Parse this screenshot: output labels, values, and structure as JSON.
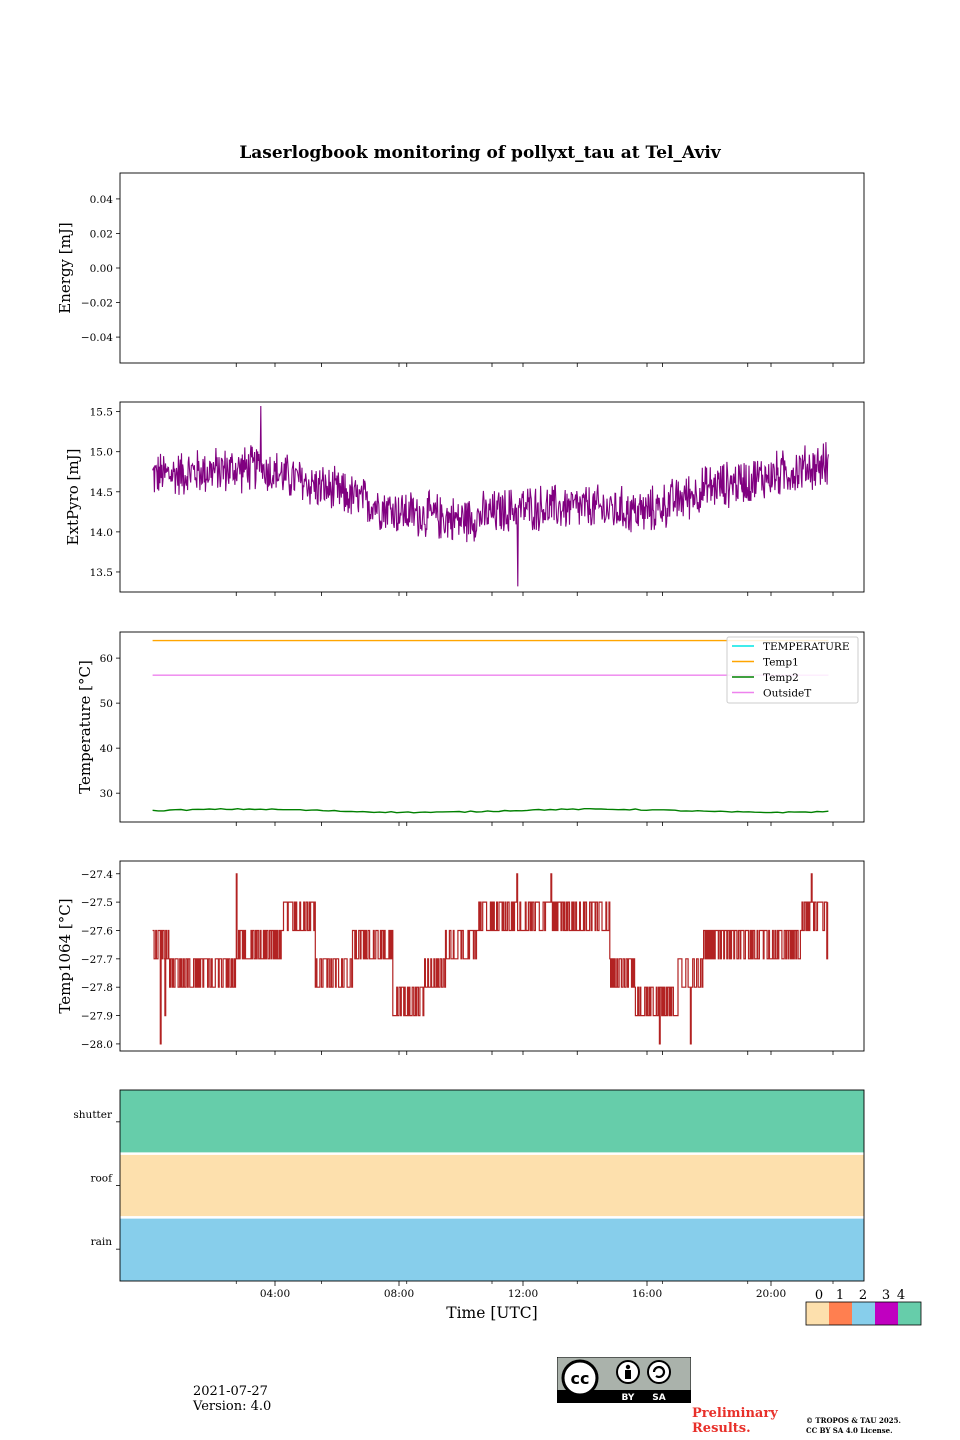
{
  "figure": {
    "title": "Laserlogbook monitoring of pollyxt_tau at Tel_Aviv",
    "date": "2021-07-27",
    "version": "Version: 4.0",
    "preliminary": [
      "Preliminary",
      "Results."
    ],
    "copyright": [
      "© TROPOS & TAU 2025.",
      "CC BY SA 4.0 License."
    ],
    "license_badge": {
      "cc": "cc",
      "by": "BY",
      "sa": "SA"
    }
  },
  "chart_data": [
    {
      "type": "line",
      "id": "energy",
      "ylabel": "Energy [mJ]",
      "ylim": [
        -0.055,
        0.055
      ],
      "yticks": [
        0.04,
        0.02,
        0.0,
        -0.02,
        -0.04
      ],
      "ytick_labels": [
        "0.04",
        "0.02",
        "0.00",
        "−0.02",
        "−0.04"
      ],
      "series": []
    },
    {
      "type": "line",
      "id": "extpyro",
      "ylabel": "ExtPyro [mJ]",
      "ylim": [
        13.25,
        15.62
      ],
      "yticks": [
        15.5,
        15.0,
        14.5,
        14.0,
        13.5
      ],
      "ytick_labels": [
        "15.5",
        "15.0",
        "14.5",
        "14.0",
        "13.5"
      ],
      "color": "#800080",
      "trend": {
        "t": [
          0.05,
          1.5,
          3.5,
          5.5,
          8.0,
          10.0,
          12.0,
          14.0,
          16.0,
          18.0,
          20.0,
          21.85
        ],
        "v": [
          14.7,
          14.75,
          14.8,
          14.55,
          14.25,
          14.15,
          14.3,
          14.3,
          14.25,
          14.55,
          14.7,
          14.85
        ]
      },
      "noise_amp": 0.28,
      "n_points": 1100,
      "extremes": {
        "max": 15.57,
        "min": 13.32
      }
    },
    {
      "type": "line",
      "id": "temperature",
      "ylabel": "Temperature [°C]",
      "ylim": [
        23.6,
        65.8
      ],
      "yticks": [
        60,
        50,
        40,
        30
      ],
      "ytick_labels": [
        "60",
        "50",
        "40",
        "30"
      ],
      "legend_position": "top-right",
      "series": [
        {
          "name": "TEMPERATURE",
          "color": "#00e5e5",
          "values": null
        },
        {
          "name": "Temp1",
          "color": "#ffa500",
          "values": 63.9
        },
        {
          "name": "Temp2",
          "color": "#008000",
          "values": 26.1
        },
        {
          "name": "OutsideT",
          "color": "#ee82ee",
          "values": 56.2
        }
      ]
    },
    {
      "type": "line",
      "id": "temp1064",
      "ylabel": "Temp1064 [°C]",
      "ylim": [
        -28.025,
        -27.355
      ],
      "yticks": [
        -27.4,
        -27.5,
        -27.6,
        -27.7,
        -27.8,
        -27.9,
        -28.0
      ],
      "ytick_labels": [
        "−27.4",
        "−27.5",
        "−27.6",
        "−27.7",
        "−27.8",
        "−27.9",
        "−28.0"
      ],
      "color": "#b22222",
      "segments": [
        {
          "t0": 0.05,
          "t1": 0.6,
          "a": -27.6,
          "b": -27.7
        },
        {
          "t0": 0.6,
          "t1": 2.8,
          "a": -27.7,
          "b": -27.8
        },
        {
          "t0": 2.8,
          "t1": 4.2,
          "a": -27.6,
          "b": -27.7
        },
        {
          "t0": 4.2,
          "t1": 5.3,
          "a": -27.5,
          "b": -27.6
        },
        {
          "t0": 5.3,
          "t1": 6.5,
          "a": -27.7,
          "b": -27.8
        },
        {
          "t0": 6.5,
          "t1": 7.8,
          "a": -27.7,
          "b": -27.6
        },
        {
          "t0": 7.8,
          "t1": 8.8,
          "a": -27.8,
          "b": -27.9
        },
        {
          "t0": 8.8,
          "t1": 9.5,
          "a": -27.8,
          "b": -27.7
        },
        {
          "t0": 9.5,
          "t1": 10.5,
          "a": -27.6,
          "b": -27.7
        },
        {
          "t0": 10.5,
          "t1": 13.5,
          "a": -27.5,
          "b": -27.6
        },
        {
          "t0": 13.5,
          "t1": 14.8,
          "a": -27.6,
          "b": -27.5
        },
        {
          "t0": 14.8,
          "t1": 15.6,
          "a": -27.7,
          "b": -27.8
        },
        {
          "t0": 15.6,
          "t1": 17.0,
          "a": -27.9,
          "b": -27.8
        },
        {
          "t0": 17.0,
          "t1": 17.8,
          "a": -27.7,
          "b": -27.8
        },
        {
          "t0": 17.8,
          "t1": 20.0,
          "a": -27.6,
          "b": -27.7
        },
        {
          "t0": 20.0,
          "t1": 21.0,
          "a": -27.6,
          "b": -27.7
        },
        {
          "t0": 21.0,
          "t1": 21.85,
          "a": -27.5,
          "b": -27.6
        }
      ],
      "spikes": [
        [
          0.3,
          -28.0
        ],
        [
          0.45,
          -27.9
        ],
        [
          2.75,
          -27.4
        ],
        [
          17.4,
          -28.0
        ],
        [
          16.4,
          -28.0
        ],
        [
          11.8,
          -27.4
        ],
        [
          12.9,
          -27.4
        ],
        [
          21.3,
          -27.4
        ],
        [
          21.8,
          -27.4
        ],
        [
          21.8,
          -27.7
        ]
      ]
    },
    {
      "type": "heatmap",
      "id": "status",
      "rows": [
        "shutter",
        "roof",
        "rain"
      ],
      "row_values": [
        4,
        0,
        2
      ],
      "colorbar": {
        "ticks": [
          "0",
          "1",
          "2",
          "3",
          "4"
        ],
        "colors": [
          "#fde0ad",
          "#ff7f50",
          "#87ceeb",
          "#c000c0",
          "#66cdaa"
        ]
      }
    }
  ],
  "x_axis": {
    "label": "Time [UTC]",
    "xlim_hours": [
      -1.0,
      23.0
    ],
    "major_ticks_hours": [
      4,
      8,
      12,
      16,
      20
    ],
    "major_tick_labels": [
      "04:00",
      "08:00",
      "12:00",
      "16:00",
      "20:00"
    ],
    "minor_ticks_hours": [
      2.75,
      5.5,
      8.25,
      11,
      13.75,
      16.5,
      19.25,
      22
    ]
  }
}
